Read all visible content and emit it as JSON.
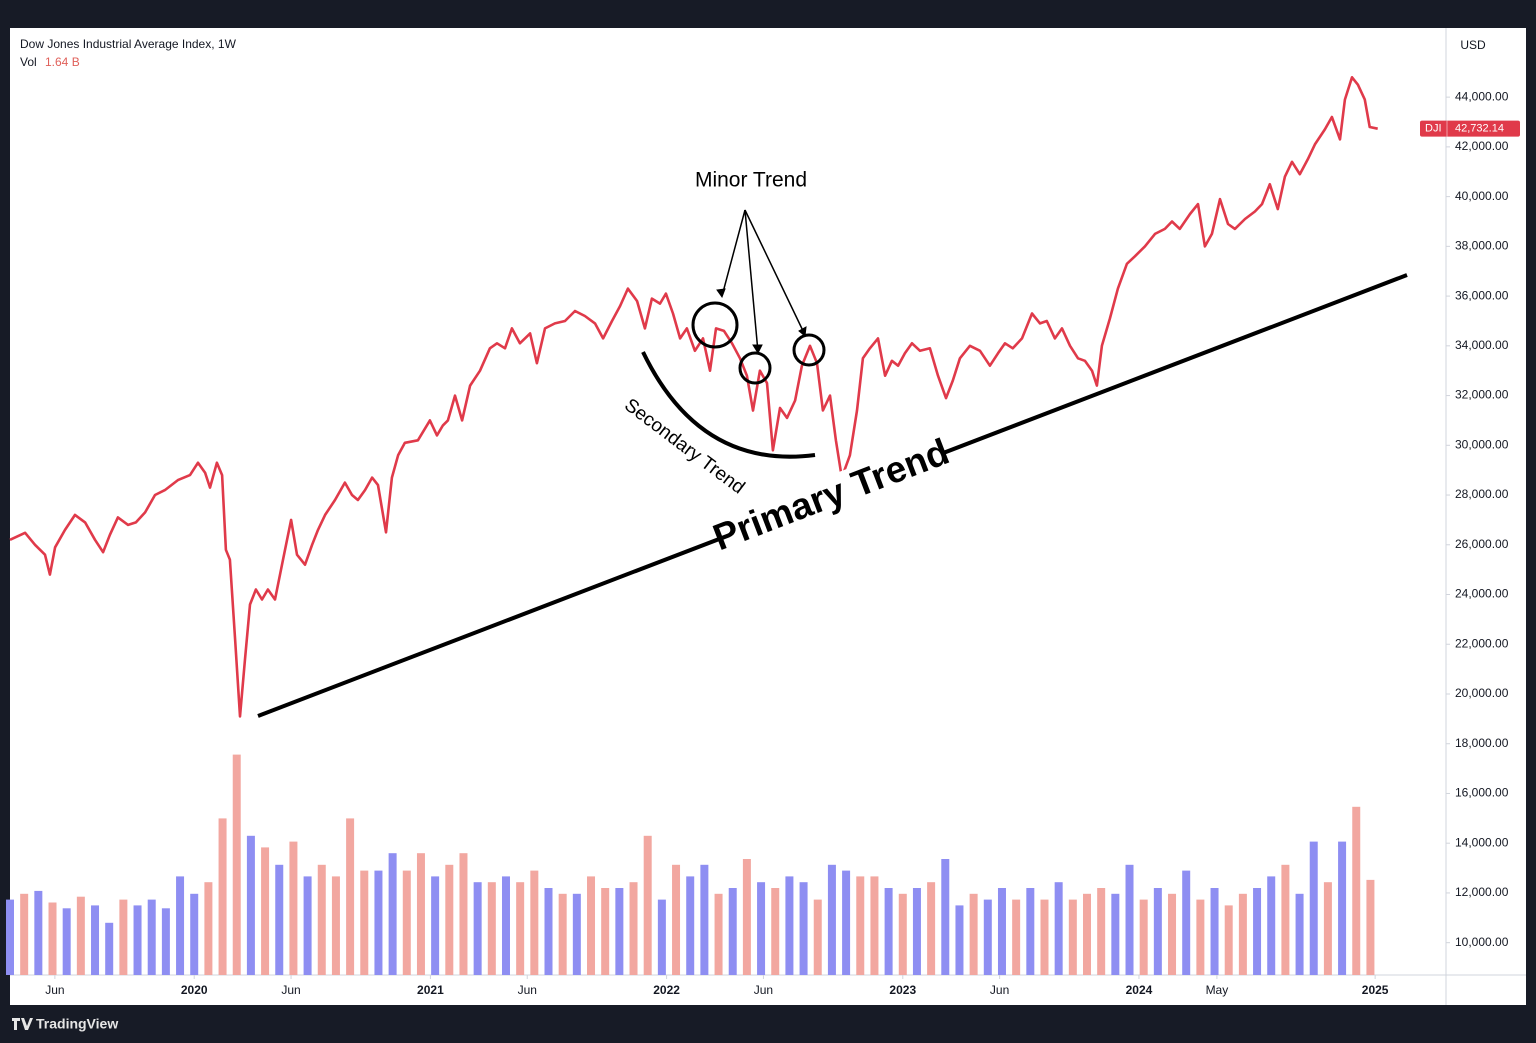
{
  "header": {
    "title": "Dow Jones Industrial Average Index, 1W",
    "vol_label": "Vol",
    "currency": "USD"
  },
  "chart_data": {
    "type": "line",
    "xlim": [
      2019.22,
      2025.3
    ],
    "ylim": [
      8700,
      46700
    ],
    "xticks": [
      {
        "value": 2019.41,
        "label": "Jun"
      },
      2020,
      {
        "value": 2020.41,
        "label": "Jun"
      },
      2021,
      {
        "value": 2021.41,
        "label": "Jun"
      },
      2022,
      {
        "value": 2022.41,
        "label": "Jun"
      },
      2023,
      {
        "value": 2023.41,
        "label": "Jun"
      },
      2024,
      {
        "value": 2024.33,
        "label": "May"
      },
      2025
    ],
    "yticks": [
      {
        "value": 10000,
        "label": "10,000.00"
      },
      {
        "value": 12000,
        "label": "12,000.00"
      },
      {
        "value": 14000,
        "label": "14,000.00"
      },
      {
        "value": 16000,
        "label": "16,000.00"
      },
      {
        "value": 18000,
        "label": "18,000.00"
      },
      {
        "value": 20000,
        "label": "20,000.00"
      },
      {
        "value": 22000,
        "label": "22,000.00"
      },
      {
        "value": 24000,
        "label": "24,000.00"
      },
      {
        "value": 26000,
        "label": "26,000.00"
      },
      {
        "value": 28000,
        "label": "28,000.00"
      },
      {
        "value": 30000,
        "label": "30,000.00"
      },
      {
        "value": 32000,
        "label": "32,000.00"
      },
      {
        "value": 34000,
        "label": "34,000.00"
      },
      {
        "value": 36000,
        "label": "36,000.00"
      },
      {
        "value": 38000,
        "label": "38,000.00"
      },
      {
        "value": 40000,
        "label": "40,000.00"
      },
      {
        "value": 42000,
        "label": "42,000.00"
      },
      {
        "value": 44000,
        "label": "44,000.00"
      }
    ],
    "x": [
      2019.22,
      2019.284,
      2019.326,
      2019.368,
      2019.389,
      2019.411,
      2019.453,
      2019.495,
      2019.538,
      2019.58,
      2019.614,
      2019.643,
      2019.677,
      2019.72,
      2019.753,
      2019.792,
      2019.834,
      2019.876,
      2019.931,
      2019.982,
      2020.016,
      2020.046,
      2020.067,
      2020.096,
      2020.118,
      2020.134,
      2020.151,
      2020.173,
      2020.194,
      2020.215,
      2020.236,
      2020.261,
      2020.287,
      2020.312,
      2020.342,
      2020.376,
      2020.41,
      2020.435,
      2020.469,
      2020.499,
      2020.524,
      2020.554,
      2020.596,
      2020.638,
      2020.668,
      2020.693,
      2020.723,
      2020.753,
      2020.778,
      2020.812,
      2020.837,
      2020.863,
      2020.892,
      2020.947,
      2020.998,
      2021.028,
      2021.053,
      2021.074,
      2021.104,
      2021.134,
      2021.168,
      2021.21,
      2021.252,
      2021.282,
      2021.316,
      2021.345,
      2021.379,
      2021.422,
      2021.451,
      2021.485,
      2021.527,
      2021.57,
      2021.612,
      2021.654,
      2021.697,
      2021.731,
      2021.769,
      2021.803,
      2021.836,
      2021.875,
      2021.908,
      2021.938,
      2021.972,
      2021.997,
      2022.027,
      2022.057,
      2022.086,
      2022.12,
      2022.154,
      2022.184,
      2022.209,
      2022.243,
      2022.277,
      2022.311,
      2022.34,
      2022.366,
      2022.395,
      2022.425,
      2022.45,
      2022.48,
      2022.51,
      2022.544,
      2022.573,
      2022.607,
      2022.637,
      2022.662,
      2022.692,
      2022.717,
      2022.742,
      2022.776,
      2022.806,
      2022.831,
      2022.861,
      2022.895,
      2022.925,
      2022.954,
      2022.98,
      2023.009,
      2023.039,
      2023.073,
      2023.115,
      2023.149,
      2023.183,
      2023.212,
      2023.242,
      2023.284,
      2023.327,
      2023.369,
      2023.403,
      2023.433,
      2023.466,
      2023.505,
      2023.547,
      2023.581,
      2023.61,
      2023.644,
      2023.674,
      2023.708,
      2023.742,
      2023.771,
      2023.801,
      2023.822,
      2023.843,
      2023.877,
      2023.911,
      2023.949,
      2023.983,
      2024.025,
      2024.068,
      2024.11,
      2024.14,
      2024.173,
      2024.216,
      2024.25,
      2024.279,
      2024.309,
      2024.343,
      2024.377,
      2024.406,
      2024.449,
      2024.491,
      2024.521,
      2024.554,
      2024.588,
      2024.618,
      2024.648,
      2024.681,
      2024.715,
      2024.745,
      2024.787,
      2024.817,
      2024.851,
      2024.872,
      2024.902,
      2024.927,
      2024.956,
      2024.977,
      2025.011
    ],
    "series": [
      {
        "name": "DJI",
        "color": "#e03a4a",
        "values": [
          26200,
          26480,
          26000,
          25600,
          24800,
          25900,
          26600,
          27200,
          26900,
          26200,
          25700,
          26400,
          27100,
          26800,
          26900,
          27300,
          28000,
          28200,
          28600,
          28800,
          29300,
          28900,
          28300,
          29300,
          28800,
          25800,
          25400,
          22200,
          19100,
          21400,
          23600,
          24200,
          23800,
          24200,
          23800,
          25400,
          27000,
          25600,
          25200,
          26000,
          26600,
          27200,
          27800,
          28500,
          28000,
          27800,
          28200,
          28700,
          28400,
          26500,
          28700,
          29600,
          30100,
          30200,
          31000,
          30400,
          30800,
          31000,
          32000,
          31000,
          32400,
          33000,
          33900,
          34100,
          33900,
          34700,
          34100,
          34500,
          33300,
          34700,
          34900,
          35000,
          35400,
          35200,
          34900,
          34300,
          35000,
          35600,
          36300,
          35800,
          34700,
          35900,
          35700,
          36100,
          35300,
          34300,
          34700,
          33800,
          34300,
          33000,
          34700,
          34600,
          34100,
          33500,
          32800,
          31400,
          33000,
          32500,
          29800,
          31500,
          31100,
          31800,
          33200,
          34000,
          33300,
          31400,
          32000,
          30200,
          28700,
          29600,
          31400,
          33500,
          33900,
          34300,
          32800,
          33400,
          33200,
          33700,
          34100,
          33800,
          33900,
          32800,
          31900,
          32600,
          33500,
          34000,
          33800,
          33200,
          33700,
          34100,
          33900,
          34300,
          35300,
          34900,
          35000,
          34300,
          34700,
          34000,
          33500,
          33400,
          33000,
          32400,
          34000,
          35100,
          36300,
          37300,
          37600,
          38000,
          38500,
          38700,
          39000,
          38700,
          39300,
          39700,
          38000,
          38500,
          39900,
          38900,
          38700,
          39100,
          39400,
          39700,
          40500,
          39500,
          40800,
          41400,
          40900,
          41500,
          42100,
          42700,
          43200,
          42300,
          43900,
          44800,
          44500,
          43900,
          42800,
          42732.14
        ]
      }
    ],
    "last_price": {
      "value": 42732.14,
      "label": "42,732.14"
    },
    "volume": {
      "last_label": "1.64 B",
      "up": {
        "color": "#f2a7a0",
        "x": [
          2019.28,
          2019.4,
          2019.52,
          2019.7,
          2020.06,
          2020.12,
          2020.18,
          2020.3,
          2020.42,
          2020.54,
          2020.6,
          2020.66,
          2020.72,
          2020.9,
          2020.96,
          2021.08,
          2021.14,
          2021.26,
          2021.38,
          2021.44,
          2021.56,
          2021.68,
          2021.74,
          2021.86,
          2021.92,
          2022.04,
          2022.22,
          2022.34,
          2022.46,
          2022.64,
          2022.82,
          2022.88,
          2023.0,
          2023.12,
          2023.3,
          2023.48,
          2023.6,
          2023.72,
          2023.78,
          2023.84,
          2024.02,
          2024.14,
          2024.26,
          2024.38,
          2024.44,
          2024.62,
          2024.8,
          2024.92,
          2024.98
        ],
        "values": [
          1.4,
          1.25,
          1.35,
          1.3,
          1.6,
          2.7,
          3.8,
          2.2,
          2.3,
          1.9,
          1.7,
          2.7,
          1.8,
          1.8,
          2.1,
          1.9,
          2.1,
          1.6,
          1.6,
          1.8,
          1.4,
          1.7,
          1.5,
          1.6,
          2.4,
          1.9,
          1.4,
          2.0,
          1.5,
          1.3,
          1.7,
          1.7,
          1.4,
          1.6,
          1.4,
          1.3,
          1.3,
          1.3,
          1.4,
          1.5,
          1.3,
          1.4,
          1.3,
          1.2,
          1.4,
          1.9,
          1.6,
          2.9,
          1.64
        ]
      },
      "down": {
        "color": "#8e8ef2",
        "x": [
          2019.22,
          2019.34,
          2019.46,
          2019.58,
          2019.64,
          2019.76,
          2019.82,
          2019.88,
          2019.94,
          2020.0,
          2020.24,
          2020.36,
          2020.48,
          2020.78,
          2020.84,
          2021.02,
          2021.2,
          2021.32,
          2021.5,
          2021.62,
          2021.8,
          2021.98,
          2022.1,
          2022.16,
          2022.28,
          2022.4,
          2022.52,
          2022.58,
          2022.7,
          2022.76,
          2022.94,
          2023.06,
          2023.18,
          2023.24,
          2023.36,
          2023.42,
          2023.54,
          2023.66,
          2023.9,
          2023.96,
          2024.08,
          2024.2,
          2024.32,
          2024.5,
          2024.56,
          2024.68,
          2024.74,
          2024.86
        ],
        "values": [
          1.3,
          1.45,
          1.15,
          1.2,
          0.9,
          1.2,
          1.3,
          1.15,
          1.7,
          1.4,
          2.4,
          1.9,
          1.7,
          1.8,
          2.1,
          1.7,
          1.6,
          1.7,
          1.5,
          1.4,
          1.5,
          1.3,
          1.7,
          1.9,
          1.5,
          1.6,
          1.7,
          1.6,
          1.9,
          1.8,
          1.5,
          1.5,
          2.0,
          1.2,
          1.3,
          1.5,
          1.5,
          1.6,
          1.4,
          1.9,
          1.5,
          1.8,
          1.5,
          1.5,
          1.7,
          1.4,
          2.3,
          2.3
        ]
      }
    },
    "annotations": {
      "minor": "Minor Trend",
      "secondary": "Secondary Trend",
      "primary": "Primary Trend"
    }
  },
  "footer": {
    "brand": "TradingView"
  }
}
